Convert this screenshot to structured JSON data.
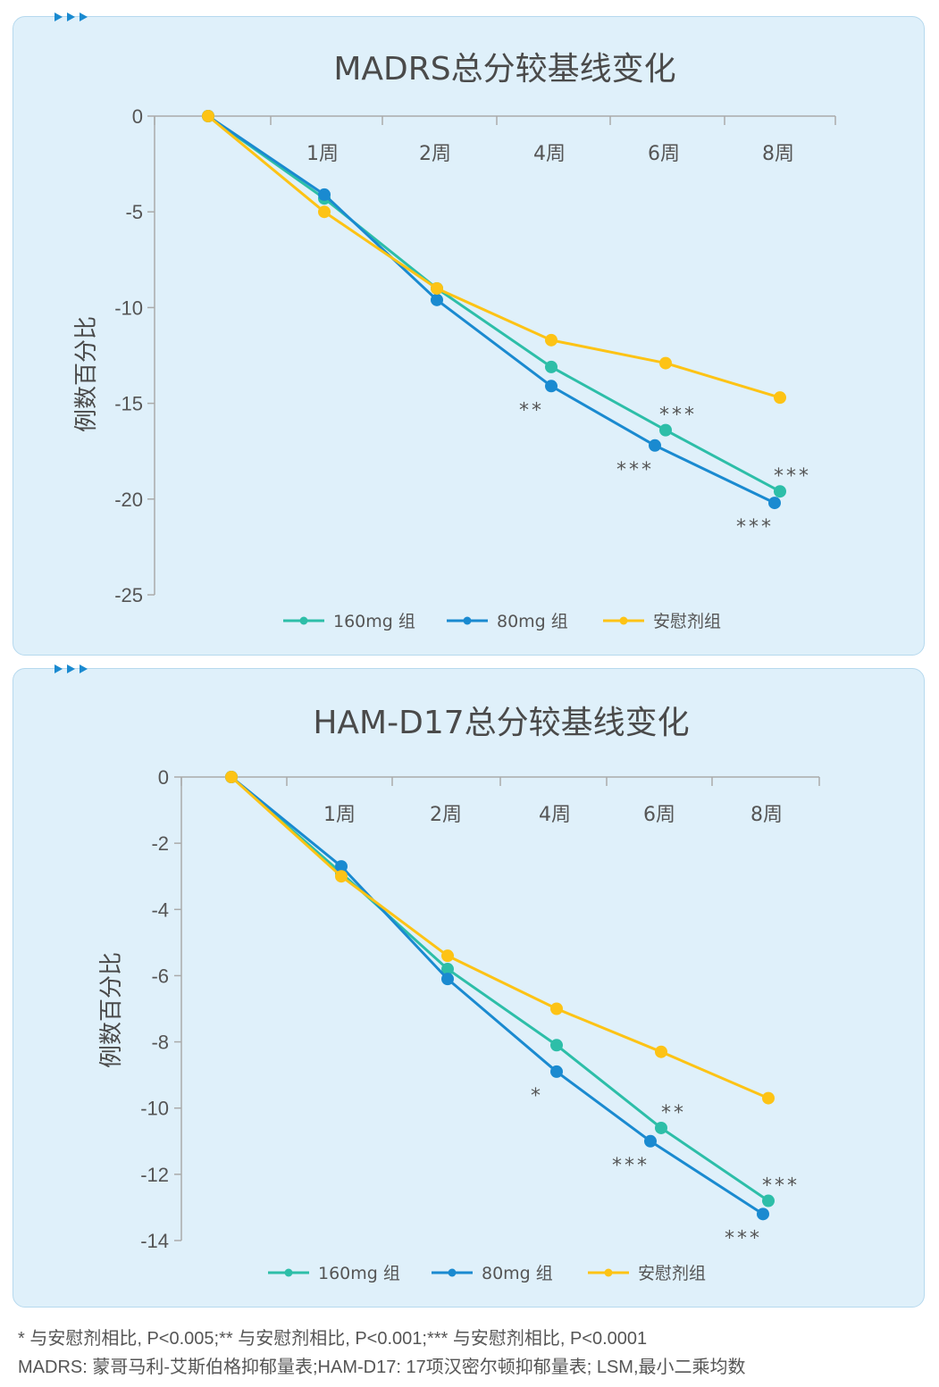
{
  "colors": {
    "s160": "#2dbea8",
    "s80": "#1a8ad0",
    "placebo": "#fdc315",
    "axis": "#aaaaaa",
    "text": "#555555"
  },
  "chart_data": [
    {
      "type": "line",
      "title": "MADRS总分较基线变化",
      "ylabel": "例数百分比",
      "ylim": [
        -25,
        0
      ],
      "yticks": [
        0,
        -5,
        -10,
        -15,
        -20,
        -25
      ],
      "x": [
        0,
        1,
        2,
        4,
        6,
        8
      ],
      "xticklabels": [
        "1周",
        "2周",
        "4周",
        "6周",
        "8周"
      ],
      "legend": [
        "160mg 组",
        "80mg 组",
        "安慰剂组"
      ],
      "series": [
        {
          "name": "160mg 组",
          "values": [
            0,
            -4.3,
            -9.0,
            -13.1,
            -16.4,
            -19.6
          ]
        },
        {
          "name": "80mg 组",
          "values": [
            0,
            -4.1,
            -9.6,
            -14.1,
            -17.2,
            -20.2
          ]
        },
        {
          "name": "安慰剂组",
          "values": [
            0,
            -5.0,
            -9.0,
            -11.7,
            -12.9,
            -14.7
          ]
        }
      ],
      "annotations": [
        {
          "text": "**",
          "series": "80mg 组",
          "x": 4,
          "y": -14.1
        },
        {
          "text": "***",
          "series": "160mg 组",
          "x": 6,
          "y": -16.4
        },
        {
          "text": "***",
          "series": "80mg 组",
          "x": 6,
          "y": -17.2
        },
        {
          "text": "***",
          "series": "160mg 组",
          "x": 8,
          "y": -19.6
        },
        {
          "text": "***",
          "series": "80mg 组",
          "x": 8,
          "y": -20.2
        }
      ]
    },
    {
      "type": "line",
      "title": "HAM-D17总分较基线变化",
      "ylabel": "例数百分比",
      "ylim": [
        -14,
        0
      ],
      "yticks": [
        0,
        -2,
        -4,
        -6,
        -8,
        -10,
        -12,
        -14
      ],
      "x": [
        0,
        1,
        2,
        4,
        6,
        8
      ],
      "xticklabels": [
        "1周",
        "2周",
        "4周",
        "6周",
        "8周"
      ],
      "legend": [
        "160mg 组",
        "80mg 组",
        "安慰剂组"
      ],
      "series": [
        {
          "name": "160mg 组",
          "values": [
            0,
            -2.9,
            -5.8,
            -8.1,
            -10.6,
            -12.8
          ]
        },
        {
          "name": "80mg 组",
          "values": [
            0,
            -2.7,
            -6.1,
            -8.9,
            -11.0,
            -13.2
          ]
        },
        {
          "name": "安慰剂组",
          "values": [
            0,
            -3.0,
            -5.4,
            -7.0,
            -8.3,
            -9.7
          ]
        }
      ],
      "annotations": [
        {
          "text": "*",
          "series": "80mg 组",
          "x": 4,
          "y": -8.9
        },
        {
          "text": "**",
          "series": "160mg 组",
          "x": 6,
          "y": -10.6
        },
        {
          "text": "***",
          "series": "80mg 组",
          "x": 6,
          "y": -11.0
        },
        {
          "text": "***",
          "series": "160mg 组",
          "x": 8,
          "y": -12.8
        },
        {
          "text": "***",
          "series": "80mg 组",
          "x": 8,
          "y": -13.2
        }
      ]
    }
  ],
  "footnotes": [
    "* 与安慰剂相比, P<0.005;** 与安慰剂相比, P<0.001;*** 与安慰剂相比, P<0.0001",
    "MADRS: 蒙哥马利-艾斯伯格抑郁量表;HAM-D17: 17项汉密尔顿抑郁量表; LSM,最小二乘均数"
  ]
}
